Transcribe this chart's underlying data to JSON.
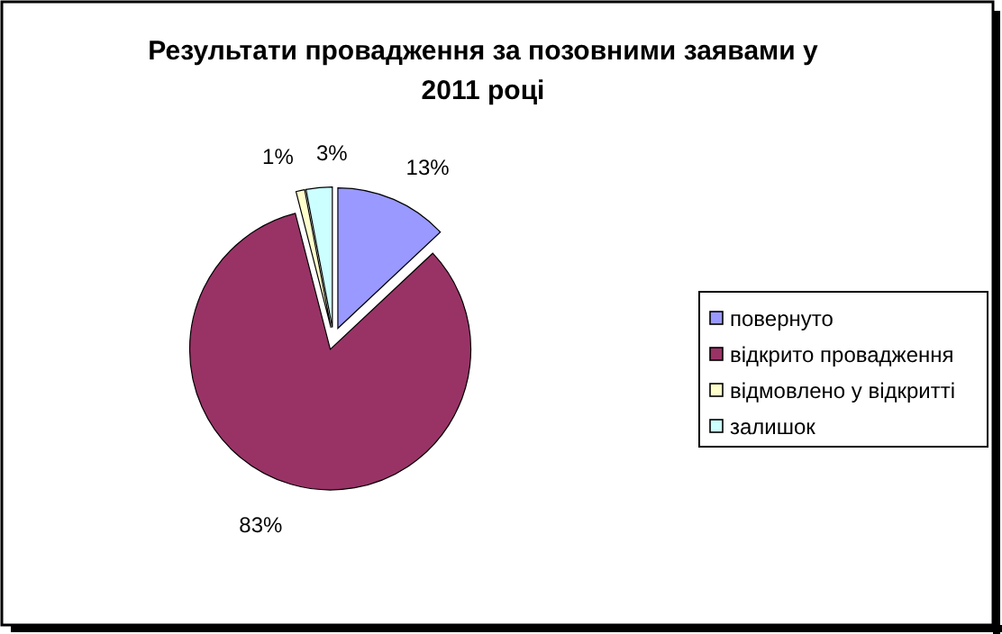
{
  "chart_data": {
    "type": "pie",
    "title": "Результати провадження за позовними заявами у 2011 році",
    "categories": [
      "повернуто",
      "відкрито провадження",
      "відмовлено у відкритті",
      "залишок"
    ],
    "values": [
      13,
      83,
      1,
      3
    ],
    "colors": [
      "#9999ff",
      "#993366",
      "#ffffcc",
      "#ccffff"
    ],
    "value_labels": [
      "13%",
      "83%",
      "1%",
      "3%"
    ],
    "legend": "right"
  }
}
